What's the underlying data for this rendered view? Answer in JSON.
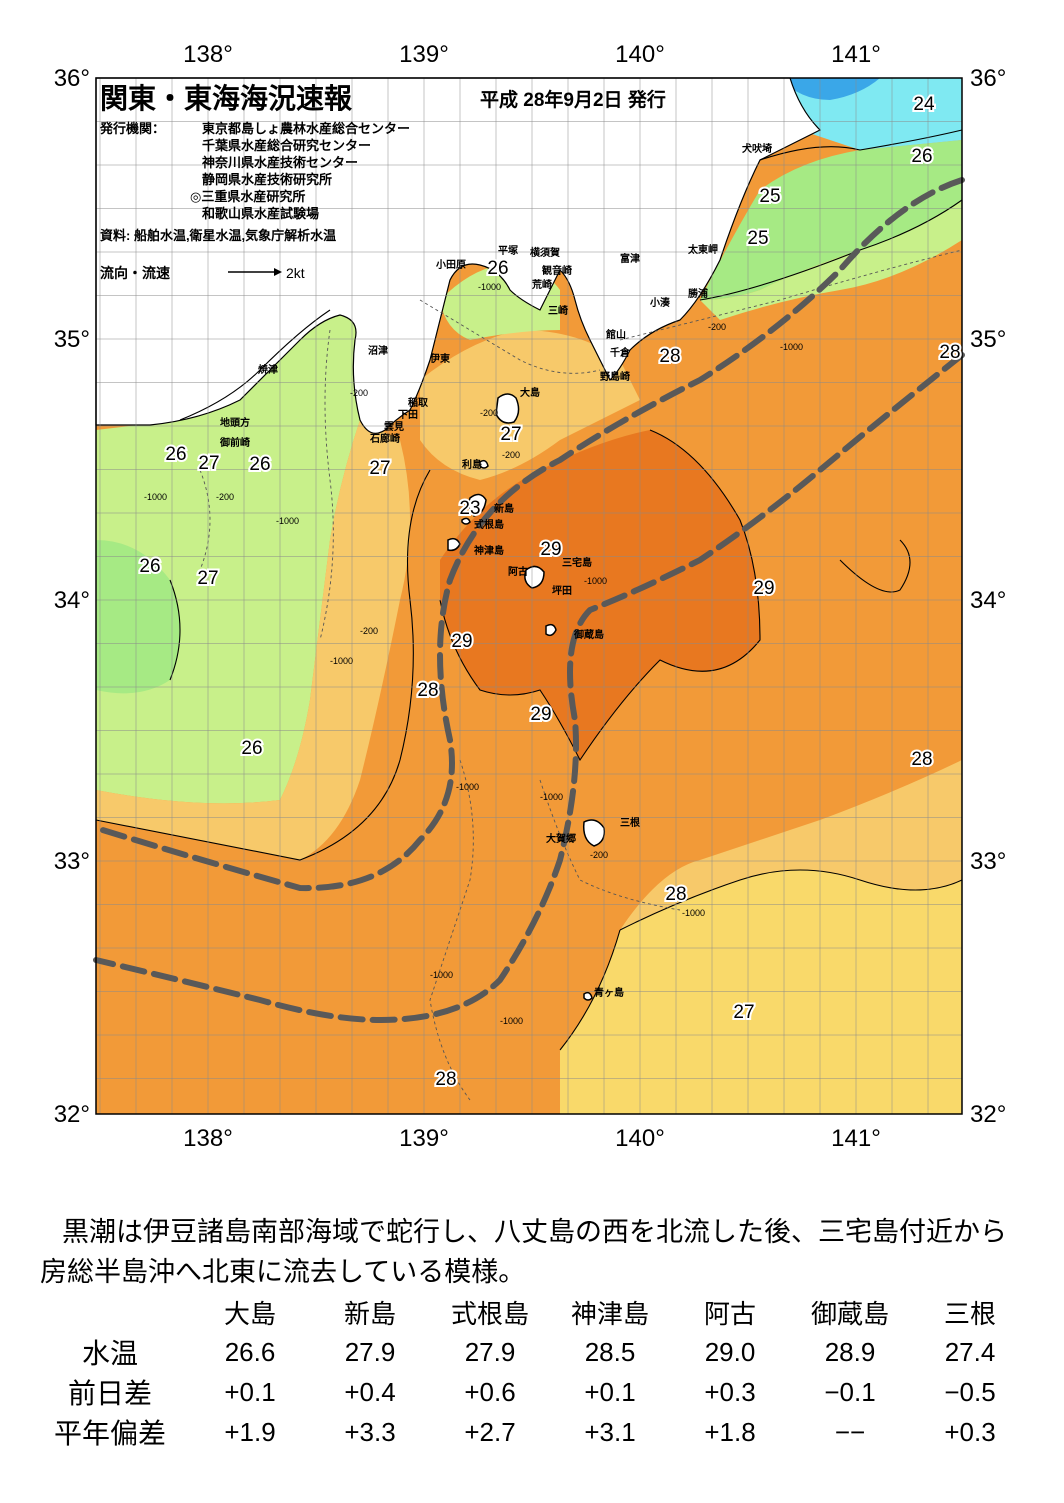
{
  "title": "関東・東海海況速報",
  "date": "平成 28年9月2日 発行",
  "publisher": {
    "label": "発行機関：",
    "orgs": [
      "東京都島しょ農林水産総合センター",
      "千葉県水産総合研究センター",
      "神奈川県水産技術センター",
      "静岡県水産技術研究所",
      "◎三重県水産研究所",
      "和歌山県水産試験場"
    ]
  },
  "source": "資料: 船舶水温,衛星水温,気象庁解析水温",
  "legend": {
    "label": "流向・流速",
    "unit": "2kt"
  },
  "axes": {
    "lon_labels": [
      "138°",
      "139°",
      "140°",
      "141°"
    ],
    "lat_labels": [
      "36°",
      "35°",
      "34°",
      "33°",
      "32°"
    ]
  },
  "place_names": [
    "犬吠埼",
    "太東岬",
    "勝浦",
    "小湊",
    "富津",
    "館山",
    "千倉",
    "野島崎",
    "横須賀",
    "観音崎",
    "平塚",
    "荒崎",
    "三崎",
    "小田原",
    "沼津",
    "伊東",
    "稲取",
    "下田",
    "雲見",
    "石廊崎",
    "焼津",
    "地頭方",
    "御前崎",
    "大島",
    "利島",
    "新島",
    "式根島",
    "神津島",
    "三宅島",
    "阿古",
    "坪田",
    "御蔵島",
    "三根",
    "大賀郷",
    "青ヶ島"
  ],
  "temperature_labels": [
    "24",
    "26",
    "25",
    "25",
    "26",
    "28",
    "28",
    "27",
    "26",
    "27",
    "26",
    "27",
    "23",
    "29",
    "26",
    "27",
    "29",
    "29",
    "28",
    "29",
    "26",
    "28",
    "28",
    "27",
    "28"
  ],
  "depth_labels": [
    "-200",
    "-1000"
  ],
  "summary": "黒潮は伊豆諸島南部海域で蛇行し、八丈島の西を北流した後、三宅島付近から房総半島沖へ北東に流去している模様。",
  "table": {
    "columns": [
      "大島",
      "新島",
      "式根島",
      "神津島",
      "阿古",
      "御蔵島",
      "三根"
    ],
    "rows": [
      {
        "label": "水温",
        "values": [
          "26.6",
          "27.9",
          "27.9",
          "28.5",
          "29.0",
          "28.9",
          "27.4"
        ]
      },
      {
        "label": "前日差",
        "values": [
          "+0.1",
          "+0.4",
          "+0.6",
          "+0.1",
          "+0.3",
          "−0.1",
          "−0.5"
        ]
      },
      {
        "label": "平年偏差",
        "values": [
          "+1.9",
          "+3.3",
          "+2.7",
          "+3.1",
          "+1.8",
          "−−",
          "+0.3"
        ]
      }
    ]
  },
  "colors": {
    "c24": "#7fe9f2",
    "c25": "#a6ea84",
    "c26": "#c8f08a",
    "c27": "#f7c96a",
    "c275": "#f5b050",
    "c28": "#f29a38",
    "c285": "#ee8a2c",
    "c29": "#e87820",
    "land": "#ffffff",
    "kuroshio": "#595959",
    "grid": "#8a8a8a"
  }
}
